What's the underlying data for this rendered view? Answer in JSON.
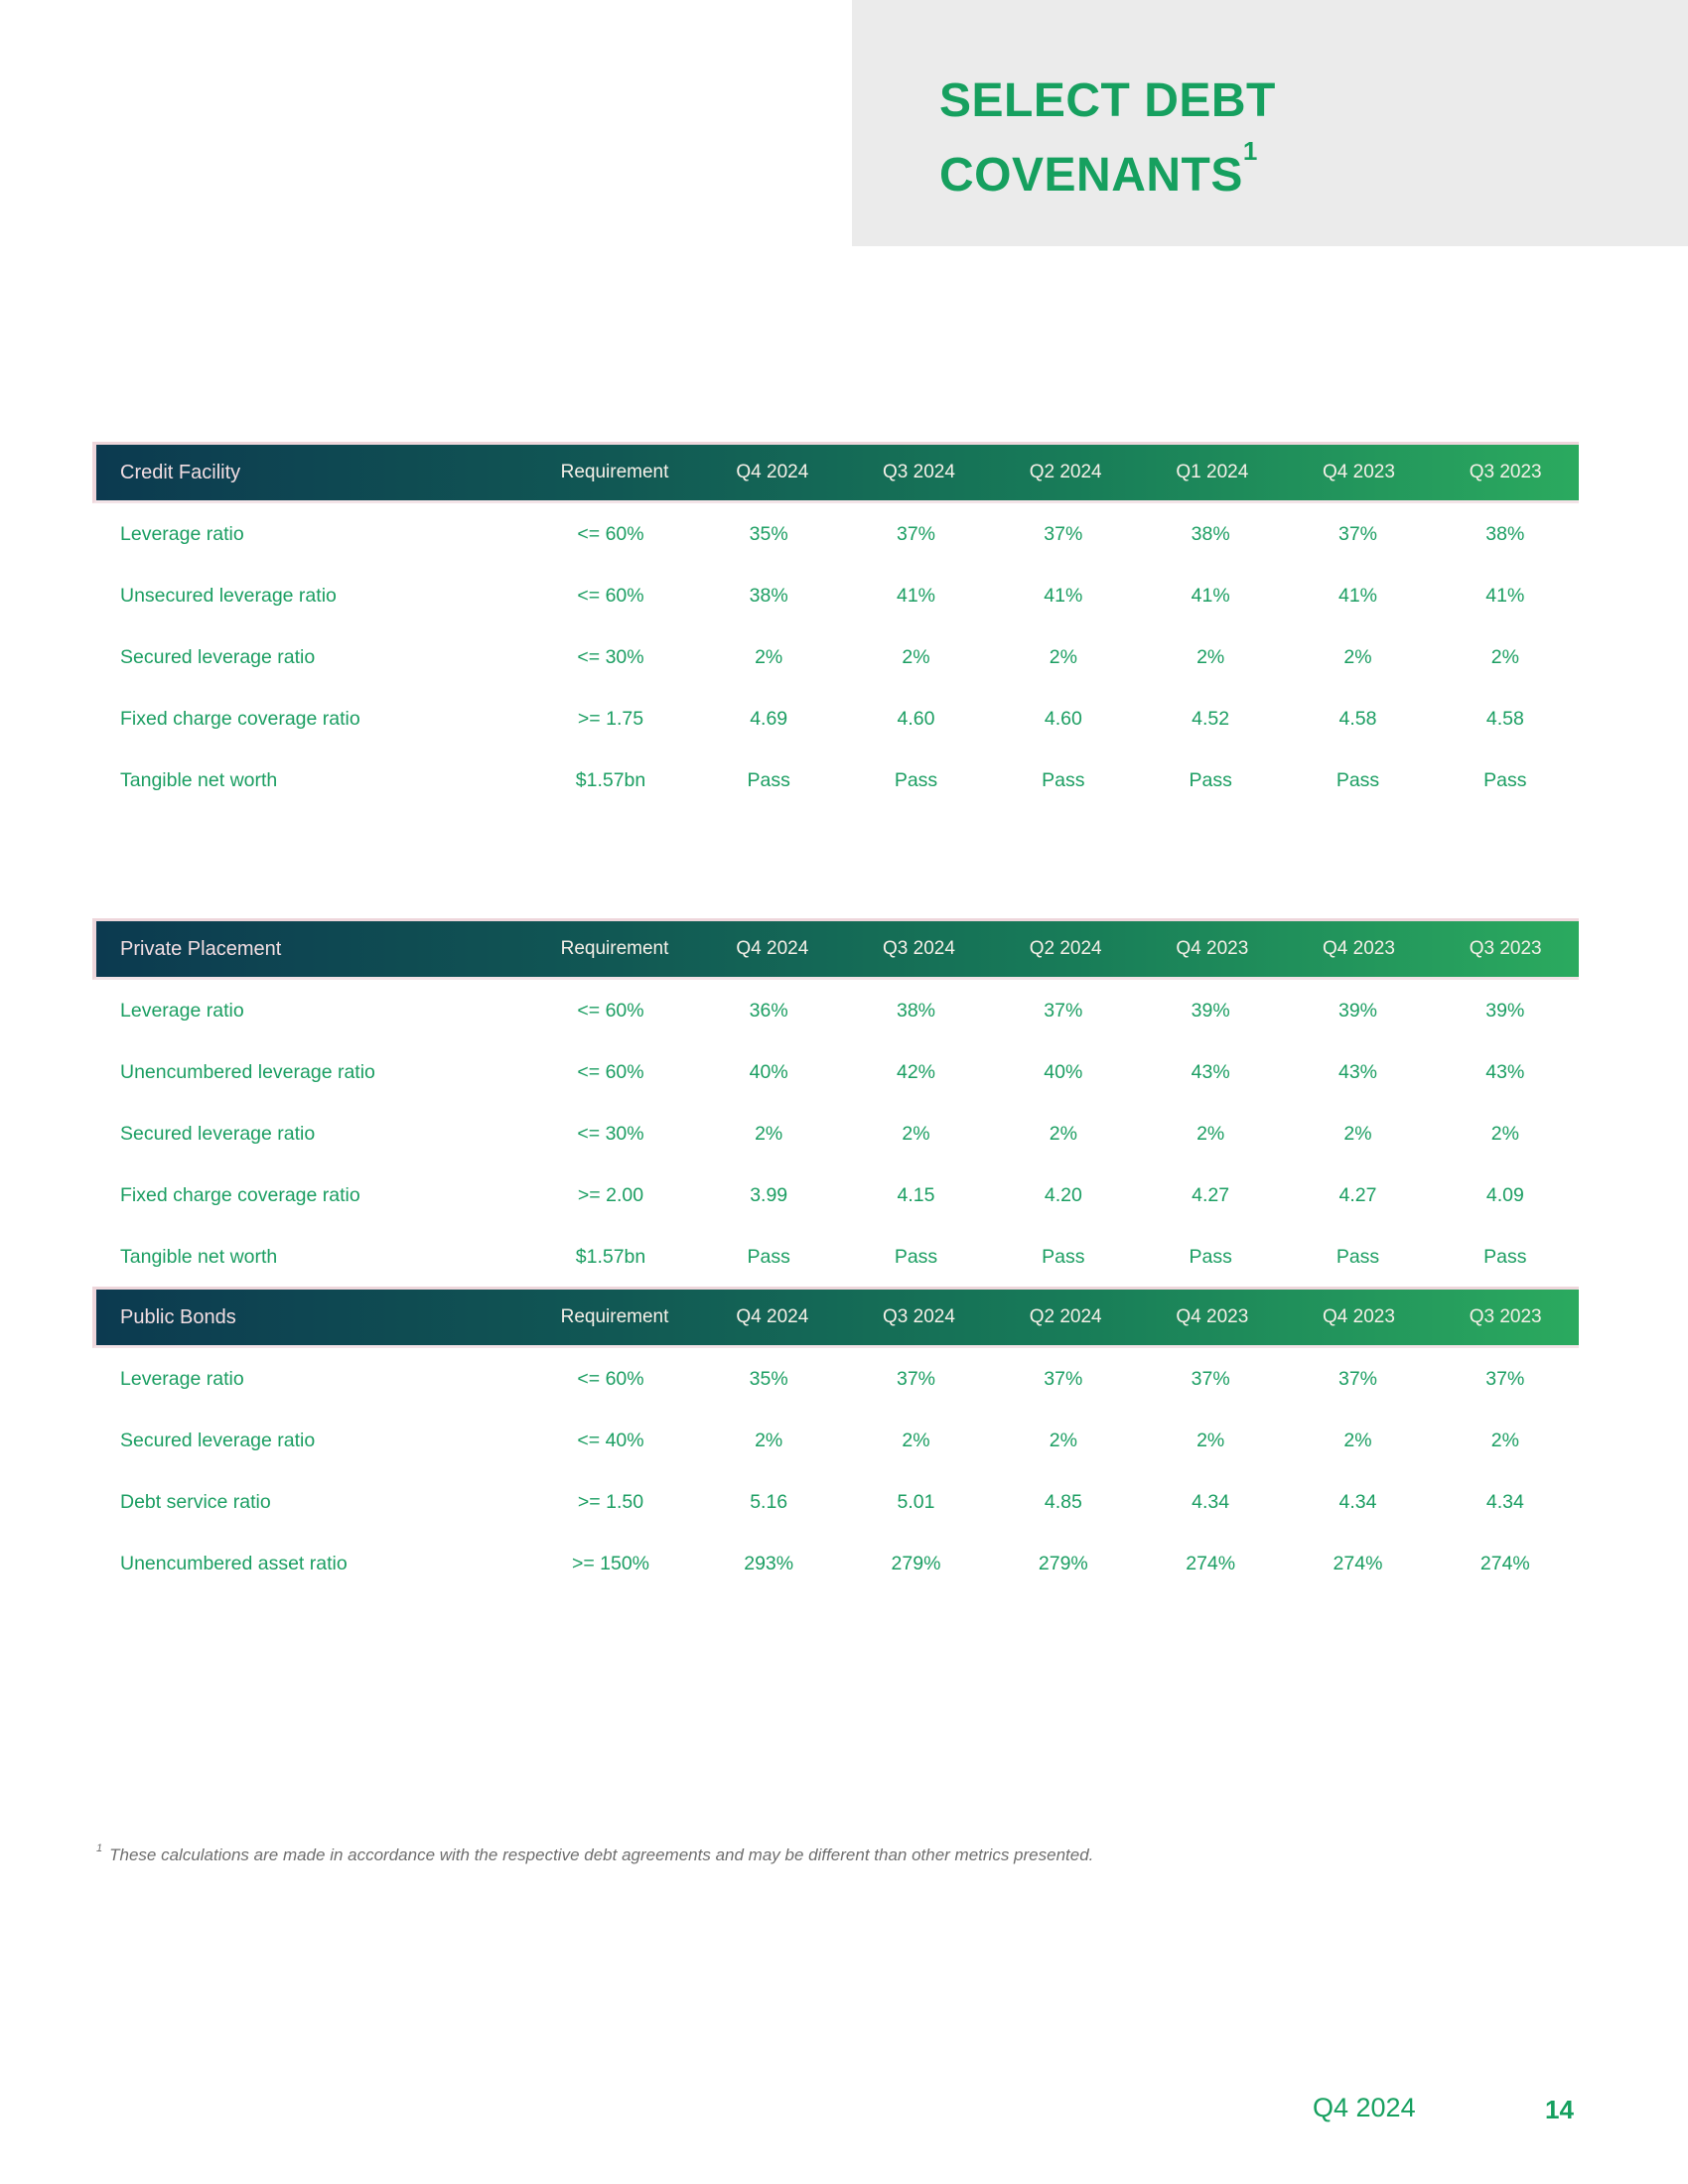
{
  "page": {
    "title_line1": "SELECT DEBT",
    "title_line2": "COVENANTS",
    "title_superscript": "1",
    "footnote_superscript": "1",
    "footnote": "These calculations are made in accordance with the respective debt agreements and may be different than other metrics presented.",
    "footer_quarter": "Q4 2024",
    "footer_page": "14"
  },
  "colors": {
    "accent_green": "#1b9e62",
    "title_green": "#16a05f",
    "header_gradient_start": "#0c3a50",
    "header_gradient_end": "#2baa5f",
    "header_text": "#f3dee3",
    "gray_box": "#ebebeb",
    "footnote_gray": "#6e6e6e"
  },
  "tables": [
    {
      "name": "Credit Facility",
      "columns": [
        "Requirement",
        "Q4 2024",
        "Q3 2024",
        "Q2 2024",
        "Q1 2024",
        "Q4 2023",
        "Q3 2023"
      ],
      "rows": [
        {
          "label": "Leverage ratio",
          "values": [
            "<= 60%",
            "35%",
            "37%",
            "37%",
            "38%",
            "37%",
            "38%"
          ]
        },
        {
          "label": "Unsecured leverage ratio",
          "values": [
            "<= 60%",
            "38%",
            "41%",
            "41%",
            "41%",
            "41%",
            "41%"
          ]
        },
        {
          "label": "Secured leverage ratio",
          "values": [
            "<= 30%",
            "2%",
            "2%",
            "2%",
            "2%",
            "2%",
            "2%"
          ]
        },
        {
          "label": "Fixed charge coverage ratio",
          "values": [
            ">= 1.75",
            "4.69",
            "4.60",
            "4.60",
            "4.52",
            "4.58",
            "4.58"
          ]
        },
        {
          "label": "Tangible net worth",
          "values": [
            "$1.57bn",
            "Pass",
            "Pass",
            "Pass",
            "Pass",
            "Pass",
            "Pass"
          ]
        }
      ]
    },
    {
      "name": "Private Placement",
      "columns": [
        "Requirement",
        "Q4 2024",
        "Q3 2024",
        "Q2 2024",
        "Q4 2023",
        "Q4 2023",
        "Q3 2023"
      ],
      "rows": [
        {
          "label": "Leverage ratio",
          "values": [
            "<= 60%",
            "36%",
            "38%",
            "37%",
            "39%",
            "39%",
            "39%"
          ]
        },
        {
          "label": "Unencumbered leverage ratio",
          "values": [
            "<= 60%",
            "40%",
            "42%",
            "40%",
            "43%",
            "43%",
            "43%"
          ]
        },
        {
          "label": "Secured leverage ratio",
          "values": [
            "<= 30%",
            "2%",
            "2%",
            "2%",
            "2%",
            "2%",
            "2%"
          ]
        },
        {
          "label": "Fixed charge coverage ratio",
          "values": [
            ">= 2.00",
            "3.99",
            "4.15",
            "4.20",
            "4.27",
            "4.27",
            "4.09"
          ]
        },
        {
          "label": "Tangible net worth",
          "values": [
            "$1.57bn",
            "Pass",
            "Pass",
            "Pass",
            "Pass",
            "Pass",
            "Pass"
          ]
        }
      ]
    },
    {
      "name": "Public Bonds",
      "columns": [
        "Requirement",
        "Q4 2024",
        "Q3 2024",
        "Q2 2024",
        "Q4 2023",
        "Q4 2023",
        "Q3 2023"
      ],
      "rows": [
        {
          "label": "Leverage ratio",
          "values": [
            "<= 60%",
            "35%",
            "37%",
            "37%",
            "37%",
            "37%",
            "37%"
          ]
        },
        {
          "label": "Secured leverage ratio",
          "values": [
            "<= 40%",
            "2%",
            "2%",
            "2%",
            "2%",
            "2%",
            "2%"
          ]
        },
        {
          "label": "Debt service ratio",
          "values": [
            ">= 1.50",
            "5.16",
            "5.01",
            "4.85",
            "4.34",
            "4.34",
            "4.34"
          ]
        },
        {
          "label": "Unencumbered asset ratio",
          "values": [
            ">= 150%",
            "293%",
            "279%",
            "279%",
            "274%",
            "274%",
            "274%"
          ]
        }
      ]
    }
  ]
}
